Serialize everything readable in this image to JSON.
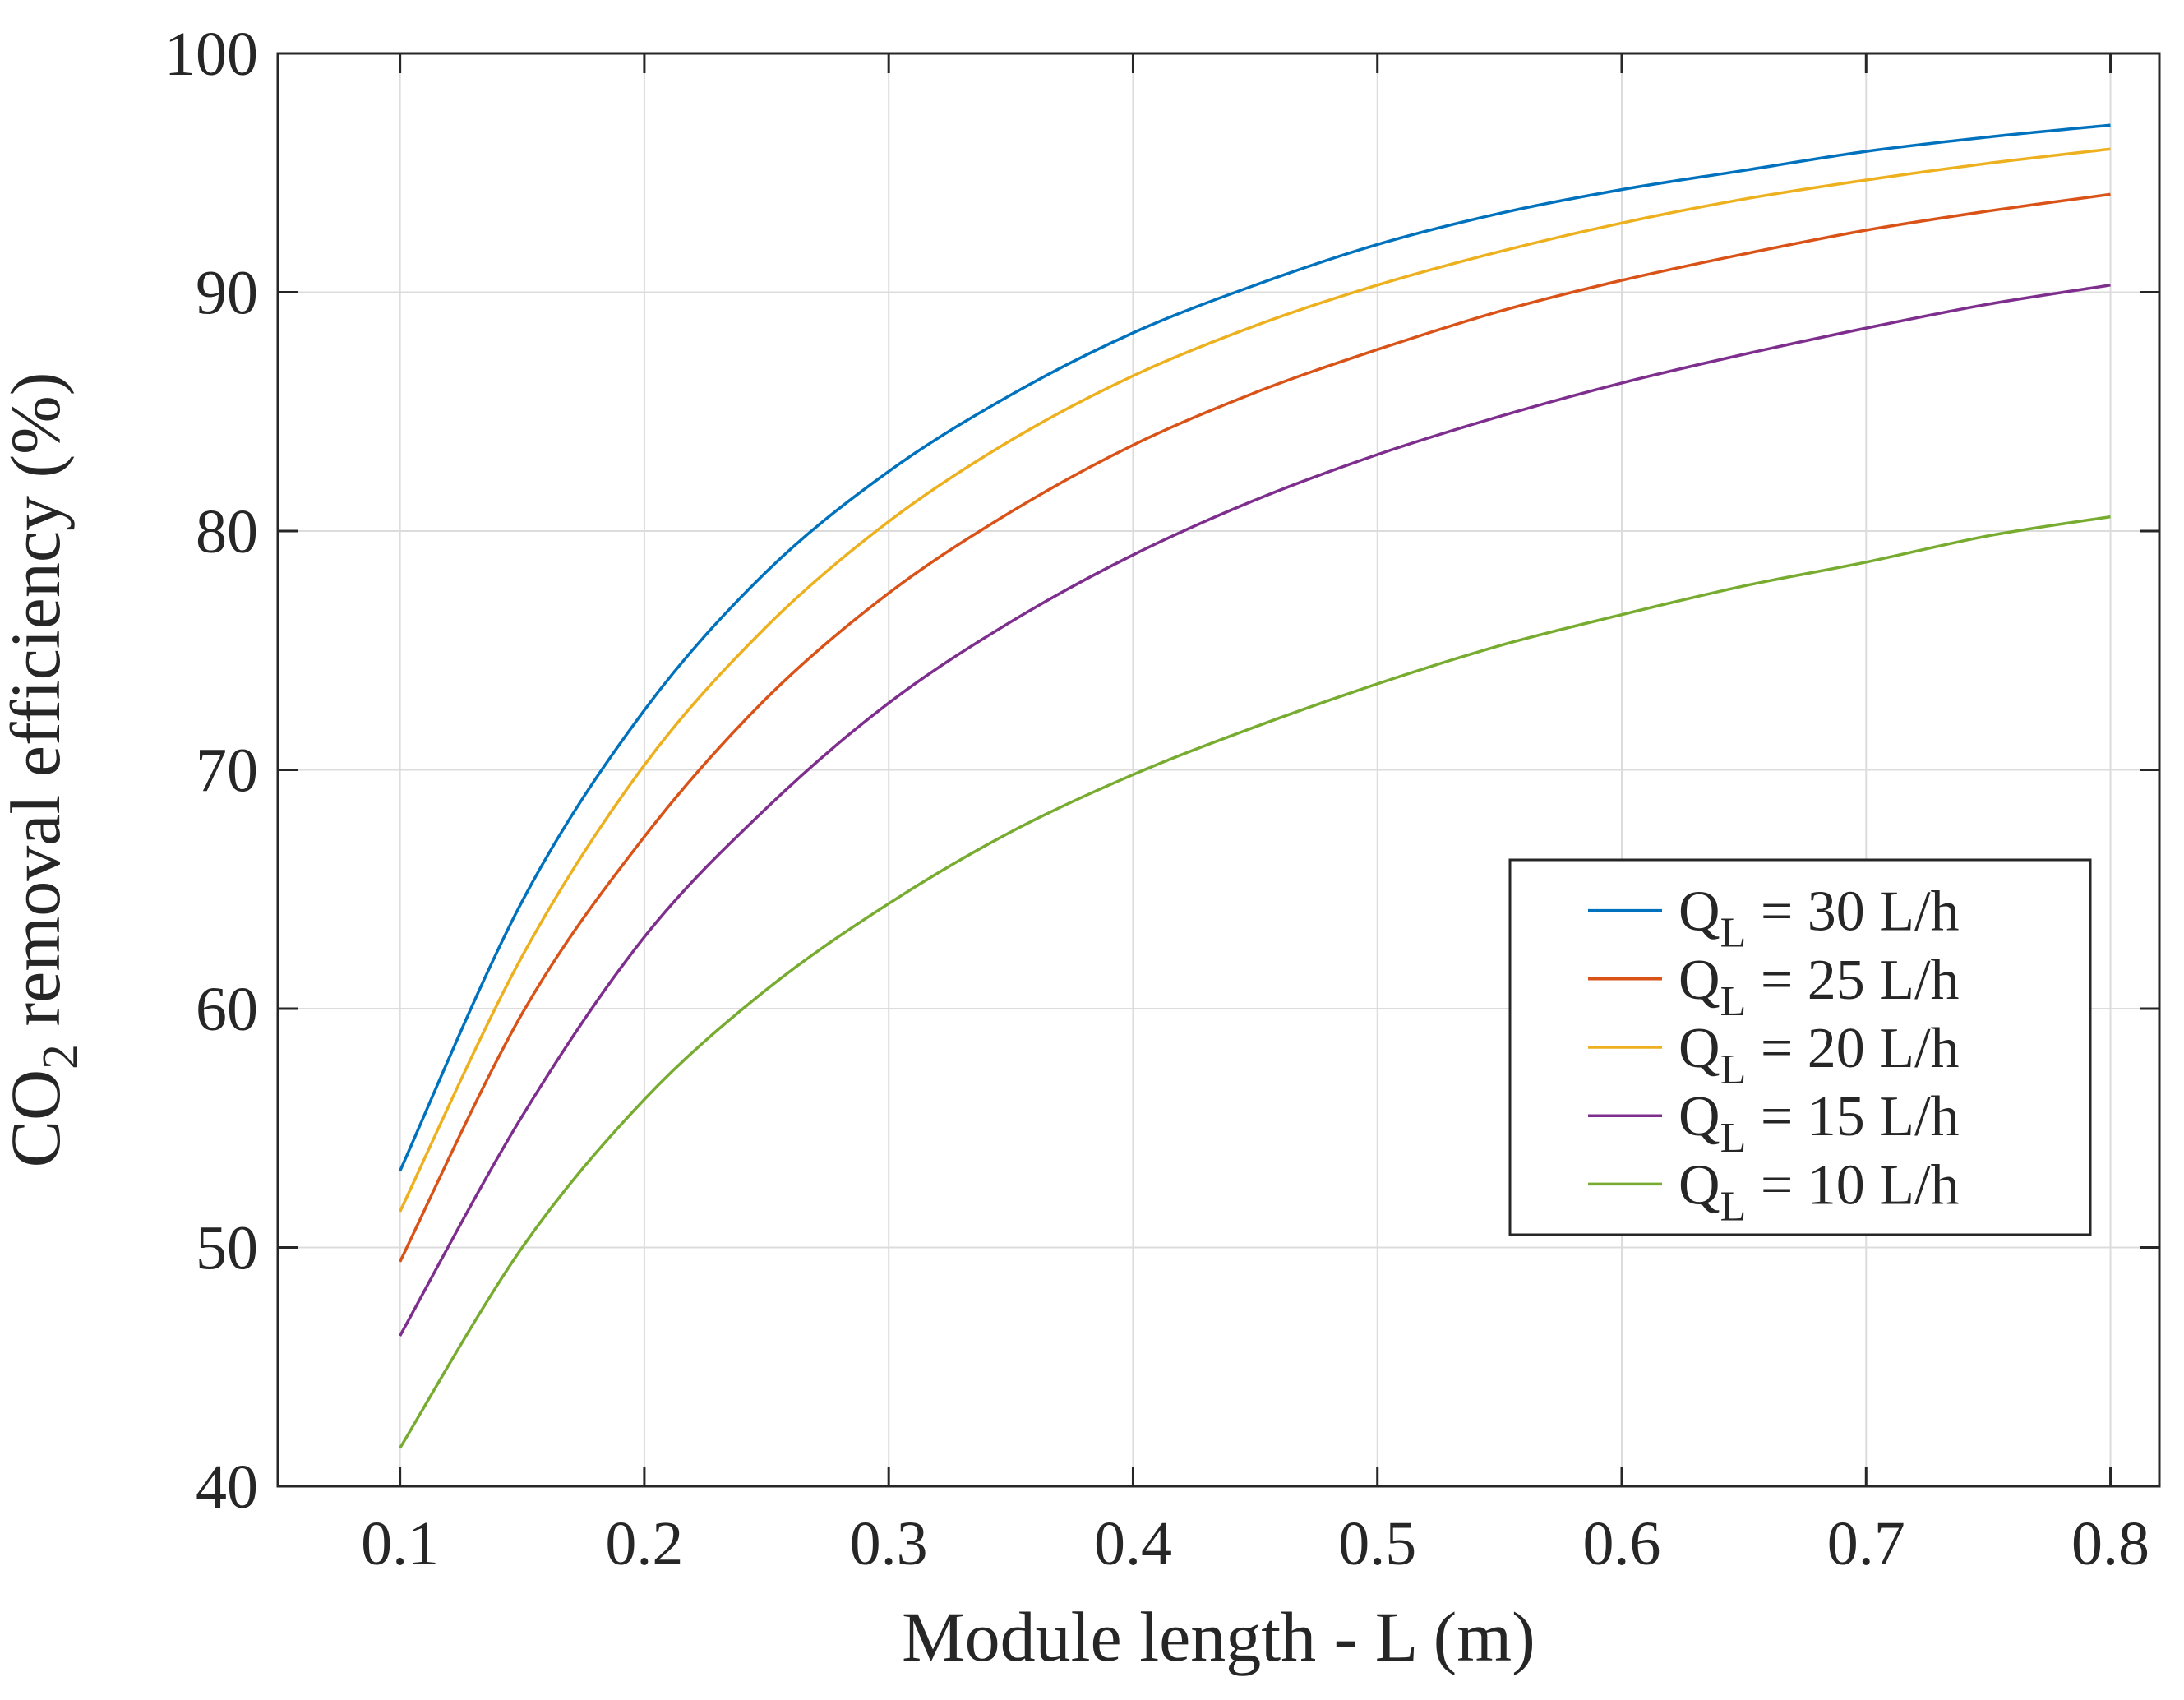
{
  "chart_data": {
    "type": "line",
    "title": "",
    "xlabel": "Module length - L (m)",
    "ylabel_main": "CO",
    "ylabel_sub": "2",
    "ylabel_rest": " removal efficiency (%)",
    "xlim": [
      0.05,
      0.82
    ],
    "ylim": [
      40,
      100
    ],
    "xticks": [
      0.1,
      0.2,
      0.3,
      0.4,
      0.5,
      0.6,
      0.7,
      0.8
    ],
    "xtick_labels": [
      "0.1",
      "0.2",
      "0.3",
      "0.4",
      "0.5",
      "0.6",
      "0.7",
      "0.8"
    ],
    "yticks": [
      40,
      50,
      60,
      70,
      80,
      90,
      100
    ],
    "ytick_labels": [
      "40",
      "50",
      "60",
      "70",
      "80",
      "90",
      "100"
    ],
    "grid": true,
    "legend_position": "bottom-right",
    "x": [
      0.1,
      0.15,
      0.2,
      0.25,
      0.3,
      0.35,
      0.4,
      0.45,
      0.5,
      0.55,
      0.6,
      0.65,
      0.7,
      0.75,
      0.8
    ],
    "series": [
      {
        "name": "30 L/h",
        "legend_main": "Q",
        "legend_sub": "L",
        "legend_rest": " = 30 L/h",
        "color": "#0072BD",
        "values": [
          53.2,
          64.5,
          72.5,
          78.3,
          82.5,
          85.7,
          88.3,
          90.3,
          92.0,
          93.3,
          94.3,
          95.1,
          95.9,
          96.5,
          97.0
        ]
      },
      {
        "name": "25 L/h",
        "legend_main": "Q",
        "legend_sub": "L",
        "legend_rest": " = 25 L/h",
        "color": "#D95319",
        "values": [
          49.4,
          59.8,
          67.2,
          73.0,
          77.4,
          80.8,
          83.6,
          85.8,
          87.6,
          89.2,
          90.5,
          91.6,
          92.6,
          93.4,
          94.1
        ]
      },
      {
        "name": "20 L/h",
        "legend_main": "Q",
        "legend_sub": "L",
        "legend_rest": " = 20 L/h",
        "color": "#EDB120",
        "values": [
          51.5,
          62.2,
          70.2,
          76.0,
          80.4,
          83.8,
          86.5,
          88.6,
          90.3,
          91.7,
          92.9,
          93.9,
          94.7,
          95.4,
          96.0
        ]
      },
      {
        "name": "15 L/h",
        "legend_main": "Q",
        "legend_sub": "L",
        "legend_rest": " = 15 L/h",
        "color": "#7E2F8E",
        "values": [
          46.3,
          55.5,
          63.0,
          68.4,
          72.8,
          76.2,
          79.0,
          81.3,
          83.2,
          84.8,
          86.2,
          87.4,
          88.5,
          89.5,
          90.3
        ]
      },
      {
        "name": "10 L/h",
        "legend_main": "Q",
        "legend_sub": "L",
        "legend_rest": " = 10 L/h",
        "color": "#77AC30",
        "values": [
          41.6,
          50.0,
          56.2,
          60.8,
          64.4,
          67.4,
          69.8,
          71.8,
          73.6,
          75.2,
          76.5,
          77.7,
          78.7,
          79.8,
          80.6
        ]
      }
    ]
  }
}
